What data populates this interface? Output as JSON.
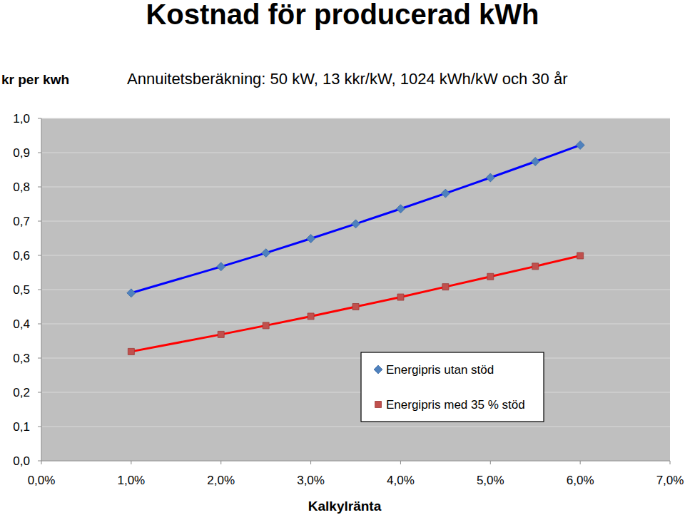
{
  "chart_data": {
    "type": "line",
    "title": "Kostnad för producerad kWh",
    "subtitle": "Annuitetsberäkning: 50 kW, 13 kkr/kW, 1024 kWh/kW och 30 år",
    "y_label": "kr per kwh",
    "x_label": "Kalkylränta",
    "x": [
      1,
      2,
      2.5,
      3,
      3.5,
      4,
      4.5,
      5,
      5.5,
      6
    ],
    "series": [
      {
        "name": "Energipris utan stöd",
        "color": "#4f81bd",
        "marker": "diamond",
        "line_style": "solid",
        "values": [
          0.49,
          0.567,
          0.607,
          0.649,
          0.692,
          0.736,
          0.781,
          0.827,
          0.874,
          0.922
        ]
      },
      {
        "name": "Energipris med 35 % stöd",
        "color": "#c0504d",
        "marker": "square",
        "line_style": "solid",
        "values": [
          0.319,
          0.369,
          0.395,
          0.422,
          0.45,
          0.478,
          0.508,
          0.538,
          0.568,
          0.599
        ]
      }
    ],
    "xlim": [
      0,
      7
    ],
    "xticks": [
      {
        "value": 0,
        "label": "0,0%"
      },
      {
        "value": 1,
        "label": "1,0%"
      },
      {
        "value": 2,
        "label": "2,0%"
      },
      {
        "value": 3,
        "label": "3,0%"
      },
      {
        "value": 4,
        "label": "4,0%"
      },
      {
        "value": 5,
        "label": "5,0%"
      },
      {
        "value": 6,
        "label": "6,0%"
      },
      {
        "value": 7,
        "label": "7,0%"
      }
    ],
    "ylim": [
      0,
      1
    ],
    "yticks": [
      {
        "value": 0,
        "label": "0,0"
      },
      {
        "value": 0.1,
        "label": "0,1"
      },
      {
        "value": 0.2,
        "label": "0,2"
      },
      {
        "value": 0.3,
        "label": "0,3"
      },
      {
        "value": 0.4,
        "label": "0,4"
      },
      {
        "value": 0.5,
        "label": "0,5"
      },
      {
        "value": 0.6,
        "label": "0,6"
      },
      {
        "value": 0.7,
        "label": "0,7"
      },
      {
        "value": 0.8,
        "label": "0,8"
      },
      {
        "value": 0.9,
        "label": "0,9"
      },
      {
        "value": 1,
        "label": "1,0"
      }
    ],
    "grid": true,
    "legend": "lower right"
  }
}
